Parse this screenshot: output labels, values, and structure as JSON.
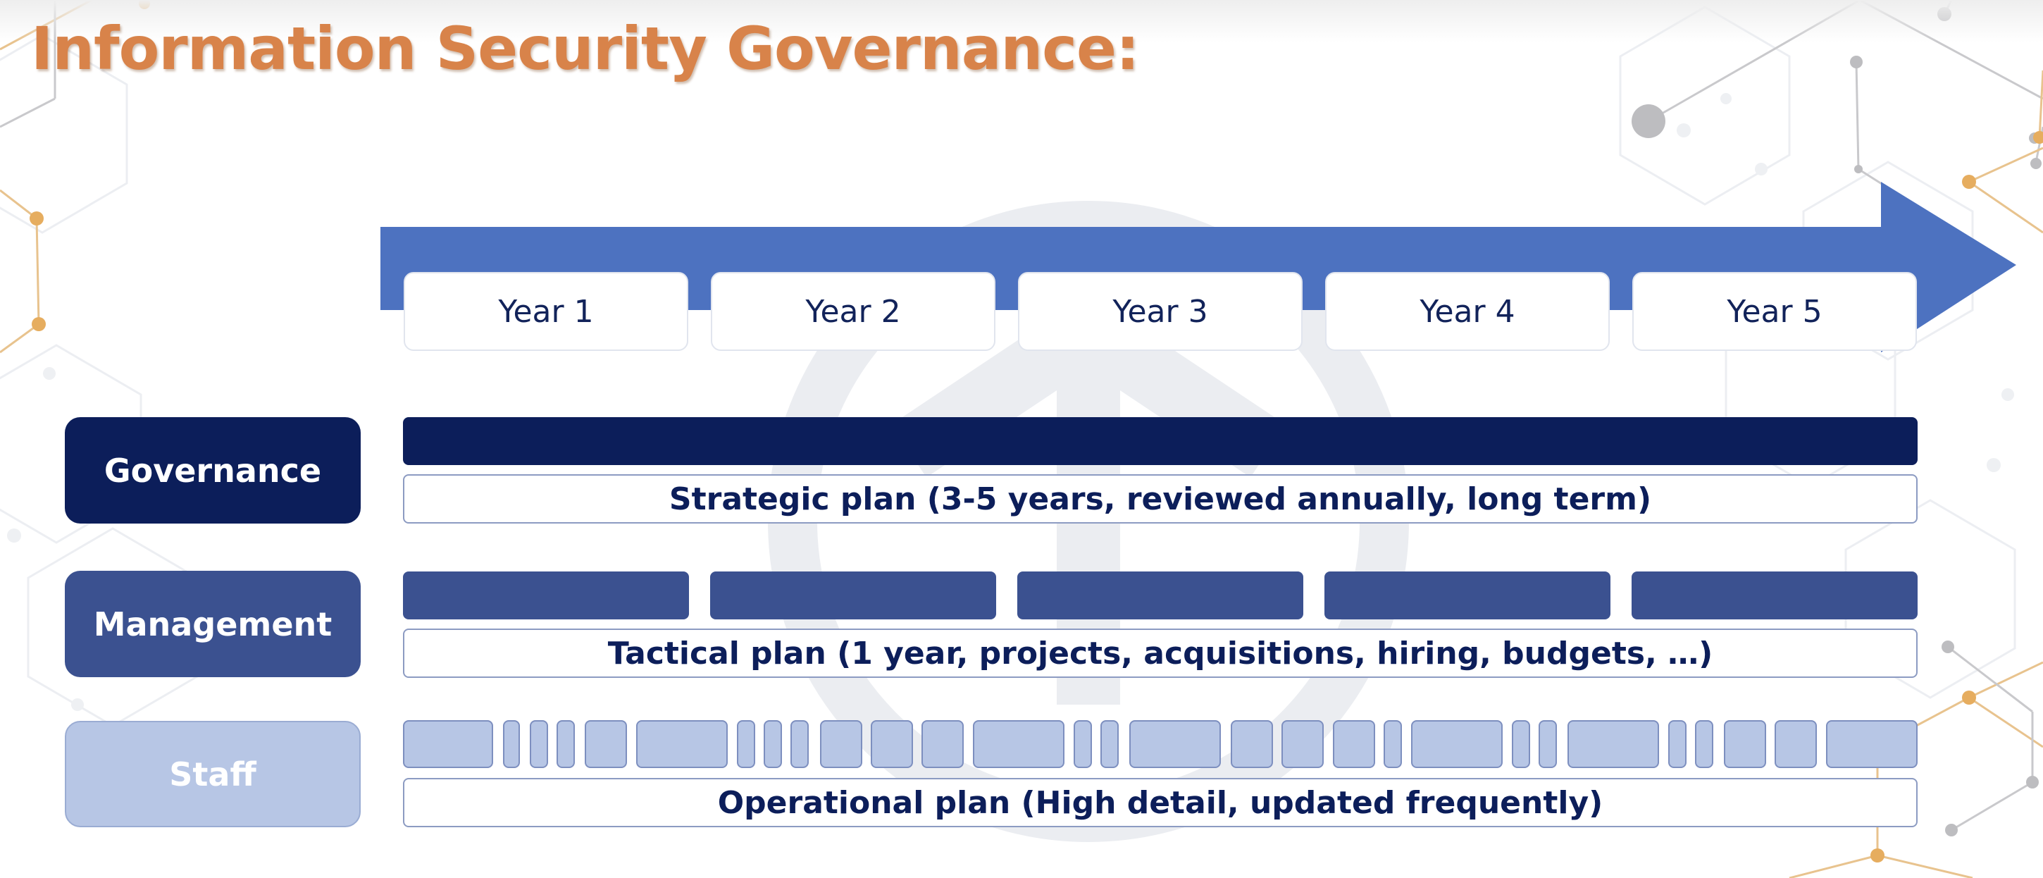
{
  "title": "Information Security Governance:",
  "colors": {
    "title": "#d8834a",
    "arrow": "#4d72c0",
    "governance": "#0c1e5a",
    "management": "#3b5190",
    "staff": "#b7c6e5"
  },
  "timeline": {
    "years": [
      "Year 1",
      "Year 2",
      "Year 3",
      "Year 4",
      "Year 5"
    ]
  },
  "rows": [
    {
      "role": "Governance",
      "plan": "Strategic plan (3-5 years, reviewed annually, long term)"
    },
    {
      "role": "Management",
      "plan": "Tactical plan (1 year, projects, acquisitions, hiring, budgets, …)"
    },
    {
      "role": "Staff",
      "plan": "Operational plan (High detail, updated frequently)"
    }
  ]
}
